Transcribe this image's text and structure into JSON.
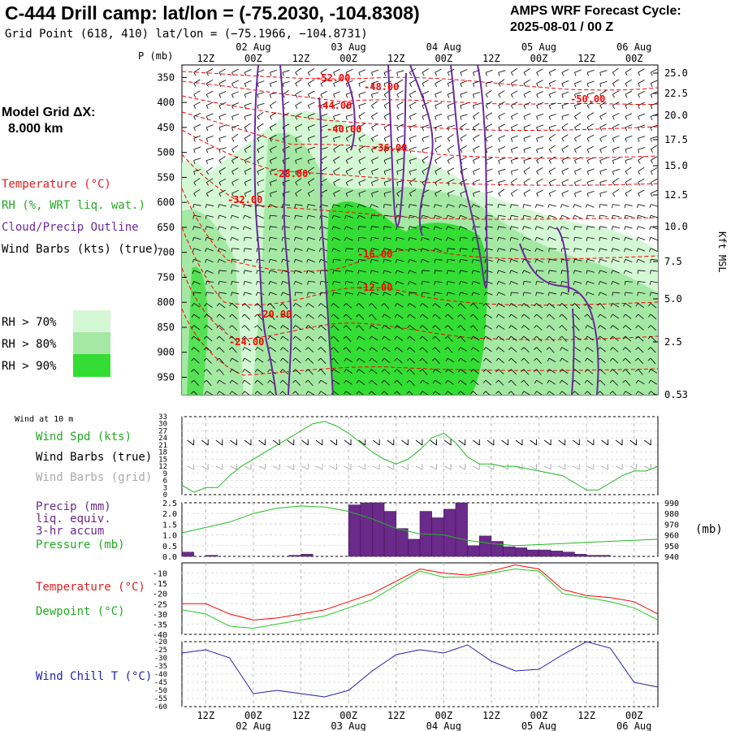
{
  "header": {
    "title": "C-444 Drill camp:  lat/lon = (-75.2030, -104.8308)",
    "subtitle": "Grid Point (618, 410) lat/lon = (−75.1966, −104.8731)",
    "cycle_line1": "AMPS WRF Forecast Cycle:",
    "cycle_line2": "2025-08-01 / 00  Z"
  },
  "model_grid": {
    "label": "Model Grid ΔX:",
    "value": "8.000 km"
  },
  "legend": {
    "temperature": "Temperature (°C)",
    "rh": "RH (%, WRT liq. wat.)",
    "cloud": "Cloud/Precip Outline",
    "wind": "Wind Barbs (kts) (true)",
    "rh70": "RH > 70%",
    "rh80": "RH > 80%",
    "rh90": "RH > 90%"
  },
  "colors": {
    "temperature": "#ff0000",
    "rh": "#22bb22",
    "cloud": "#7a2a9a",
    "rh70": "#d4f7d4",
    "rh80": "#a4e8a4",
    "rh90": "#33dd33",
    "precip": "#6a2a8a",
    "windchill": "#2222aa",
    "dewpoint": "#22cc22"
  },
  "time_axis": {
    "ticks": [
      "12Z",
      "00Z",
      "12Z",
      "00Z",
      "12Z",
      "00Z",
      "12Z",
      "00Z",
      "12Z",
      "00Z"
    ],
    "dates": [
      "02 Aug",
      "03 Aug",
      "04 Aug",
      "05 Aug",
      "06 Aug"
    ]
  },
  "chart_data": [
    {
      "type": "heatmap",
      "name": "cross-section",
      "yaxis_left_label": "P (mb)",
      "yaxis_left_ticks": [
        "350",
        "400",
        "450",
        "500",
        "550",
        "600",
        "650",
        "700",
        "750",
        "800",
        "850",
        "900",
        "950"
      ],
      "yaxis_right_ticks": [
        "25.0",
        "22.5",
        "20.0",
        "17.5",
        "15.0",
        "12.5",
        "10.0",
        "7.5",
        "5.0",
        "2.5",
        "0.53"
      ],
      "yaxis_right_label": "Kft MSL",
      "temperature_labels": [
        "-52.00",
        "-48.00",
        "-50.00",
        "-44.00",
        "-40.00",
        "-36.00",
        "-28.00",
        "-32.00",
        "-16.00",
        "-12.00",
        "-20.00",
        "-24.00"
      ]
    },
    {
      "type": "line",
      "name": "wind10m",
      "header": "Wind at 10 m",
      "labels": [
        "Wind Spd (kts)",
        "Wind Barbs (true)",
        "Wind Barbs (grid)"
      ],
      "yticks": [
        "33",
        "30",
        "27",
        "24",
        "21",
        "18",
        "15",
        "12",
        "9",
        "6",
        "3",
        "0"
      ],
      "ylim": [
        0,
        33
      ],
      "x": [
        0,
        3,
        6,
        9,
        12,
        15,
        18,
        21,
        24,
        27,
        30,
        33,
        36,
        39,
        42,
        45,
        48,
        51,
        54,
        57,
        60,
        63,
        66,
        69,
        72,
        75,
        78,
        81,
        84,
        87,
        90,
        93,
        96,
        99,
        102,
        105,
        108,
        111,
        114,
        117,
        120
      ],
      "series": [
        {
          "name": "Wind Spd (kts)",
          "values": [
            4,
            1,
            3,
            3,
            8,
            12,
            15,
            18,
            21,
            24,
            27,
            30,
            31,
            29,
            26,
            22,
            18,
            15,
            13,
            15,
            19,
            24,
            26,
            22,
            16,
            13,
            13,
            12,
            12,
            11,
            10,
            9,
            8,
            5,
            2,
            2,
            5,
            8,
            10,
            10,
            12
          ]
        }
      ]
    },
    {
      "type": "bar",
      "name": "precip-pressure",
      "labels": [
        "Precip (mm)",
        "liq. equiv.",
        "3-hr accum",
        "Pressure (mb)"
      ],
      "yticks_left": [
        "2.5",
        "2.0",
        "1.5",
        "1.0",
        "0.5",
        "0.0"
      ],
      "yticks_right": [
        "990",
        "980",
        "970",
        "960",
        "950",
        "940"
      ],
      "right_unit": "(mb)",
      "ylim": [
        0,
        2.5
      ],
      "ylim_right": [
        940,
        990
      ],
      "precip_x": [
        0,
        3,
        6,
        9,
        12,
        15,
        18,
        21,
        24,
        27,
        30,
        33,
        36,
        39,
        42,
        45,
        48,
        51,
        54,
        57,
        60,
        63,
        66,
        69,
        72,
        75,
        78,
        81,
        84,
        87,
        90,
        93,
        96,
        99,
        102,
        105,
        108,
        111,
        114,
        117
      ],
      "precip": [
        0.2,
        0,
        0.05,
        0,
        0,
        0,
        0,
        0,
        0,
        0.05,
        0.1,
        0,
        0,
        0,
        2.4,
        2.5,
        2.5,
        2.1,
        1.3,
        0.8,
        2.1,
        1.8,
        2.2,
        2.5,
        0.5,
        0.95,
        0.7,
        0.45,
        0.4,
        0.3,
        0.3,
        0.25,
        0.2,
        0.1,
        0.05,
        0.05,
        0,
        0,
        0,
        0
      ],
      "pressure_x": [
        0,
        6,
        12,
        18,
        24,
        30,
        36,
        42,
        48,
        54,
        60,
        66,
        72,
        78,
        84,
        90,
        96,
        102,
        108,
        114,
        120
      ],
      "pressure": [
        962,
        967,
        972,
        980,
        985,
        987,
        986,
        982,
        975,
        966,
        961,
        960,
        955,
        952,
        950,
        951,
        952,
        953,
        954,
        955,
        956
      ]
    },
    {
      "type": "line",
      "name": "temp-dew",
      "labels": [
        "Temperature (°C)",
        "Dewpoint (°C)"
      ],
      "yticks": [
        "-10",
        "-15",
        "-20",
        "-25",
        "-30",
        "-35",
        "-40"
      ],
      "ylim": [
        -40,
        -5
      ],
      "x": [
        0,
        6,
        12,
        18,
        24,
        30,
        36,
        42,
        48,
        54,
        60,
        66,
        72,
        78,
        84,
        90,
        96,
        102,
        108,
        114,
        120
      ],
      "series": [
        {
          "name": "Temperature (°C)",
          "values": [
            -25,
            -25,
            -30,
            -33,
            -32,
            -30,
            -28,
            -24,
            -20,
            -14,
            -8,
            -10,
            -11,
            -9,
            -6,
            -8,
            -18,
            -21,
            -22,
            -24,
            -30
          ]
        },
        {
          "name": "Dewpoint (°C)",
          "values": [
            -28,
            -30,
            -36,
            -37,
            -35,
            -33,
            -31,
            -27,
            -23,
            -16,
            -9,
            -12,
            -12,
            -10,
            -8,
            -9,
            -20,
            -22,
            -24,
            -27,
            -33
          ]
        }
      ]
    },
    {
      "type": "line",
      "name": "windchill",
      "labels": [
        "Wind Chill T (°C)"
      ],
      "yticks": [
        "-20",
        "-25",
        "-30",
        "-35",
        "-40",
        "-45",
        "-50",
        "-55",
        "-60"
      ],
      "ylim": [
        -60,
        -20
      ],
      "x": [
        0,
        6,
        12,
        18,
        24,
        30,
        36,
        42,
        48,
        54,
        60,
        66,
        72,
        78,
        84,
        90,
        96,
        102,
        108,
        114,
        120
      ],
      "series": [
        {
          "name": "Wind Chill T (°C)",
          "values": [
            -27,
            -25,
            -30,
            -52,
            -50,
            -52,
            -54,
            -50,
            -38,
            -28,
            -25,
            -27,
            -22,
            -32,
            -38,
            -37,
            -28,
            -20,
            -24,
            -45,
            -48
          ]
        }
      ]
    }
  ]
}
